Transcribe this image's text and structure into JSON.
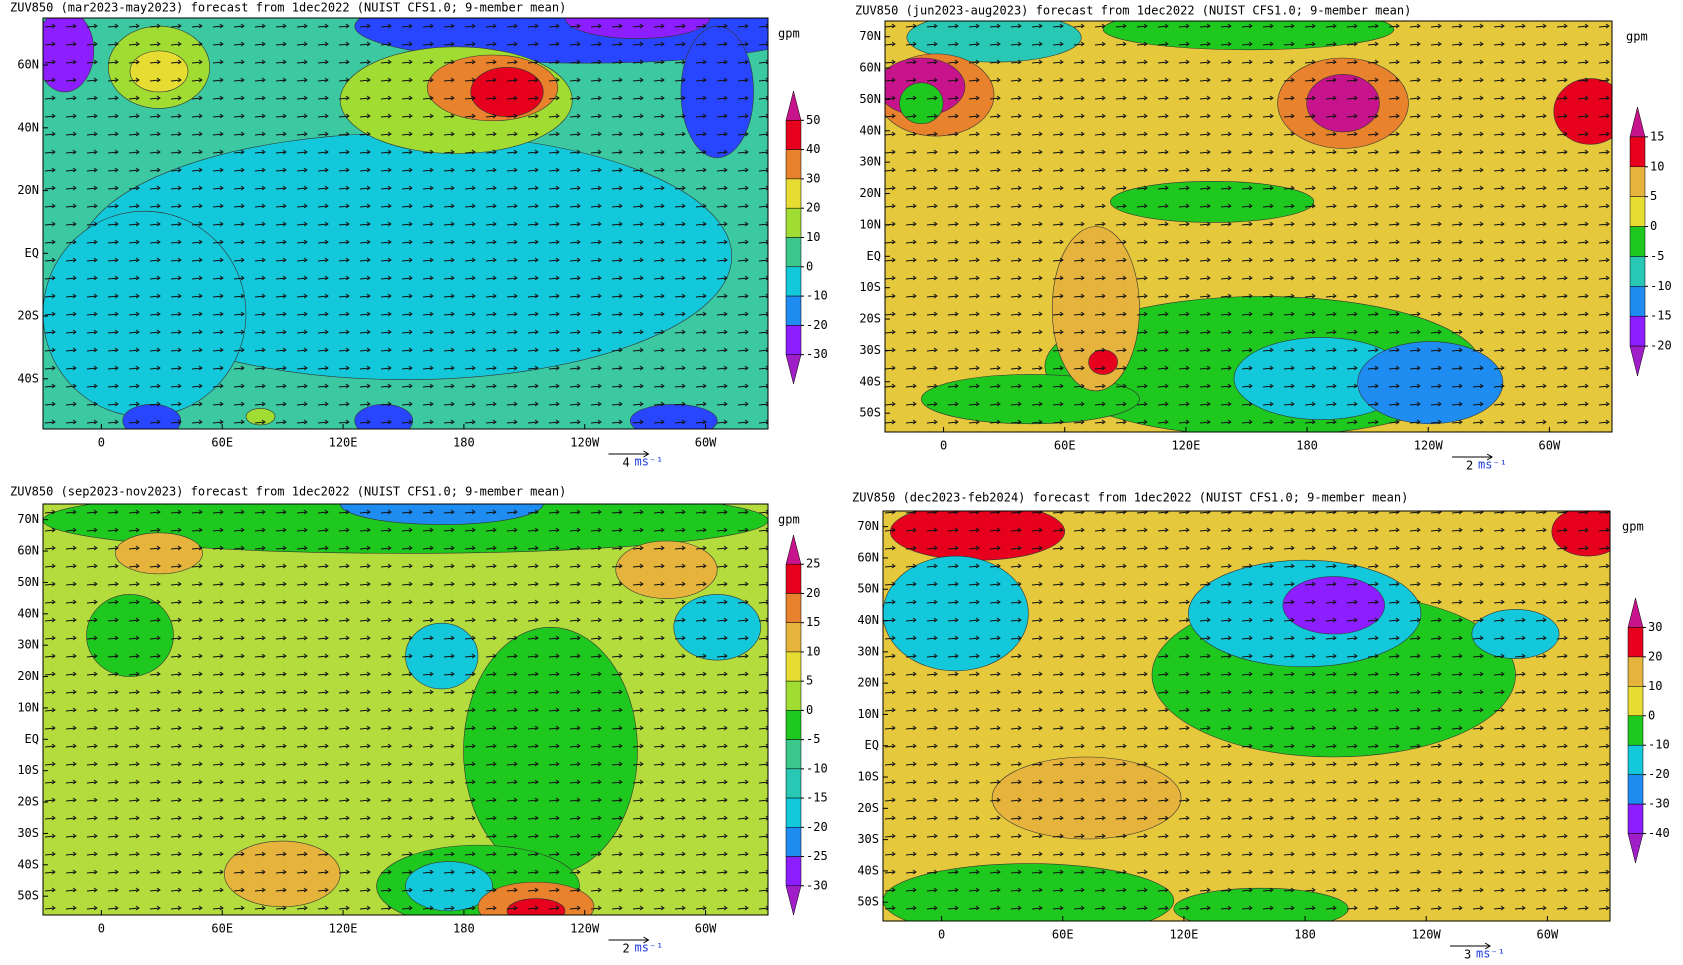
{
  "panels": [
    {
      "title": "ZUV850 (mar2023-may2023) forecast from 1dec2022 (NUIST CFS1.0; 9-member mean)",
      "lat_labels": [
        "60N",
        "40N",
        "20N",
        "EQ",
        "20S",
        "40S"
      ],
      "lon_labels": [
        "0",
        "60E",
        "120E",
        "180",
        "120W",
        "60W"
      ],
      "unit": "gpm",
      "levels": [
        "50",
        "40",
        "30",
        "20",
        "10",
        "0",
        "-10",
        "-20",
        "-30"
      ],
      "scale": "4",
      "scale_unit": "ms⁻¹"
    },
    {
      "title": "ZUV850 (jun2023-aug2023) forecast from 1dec2022 (NUIST CFS1.0; 9-member mean)",
      "lat_labels": [
        "70N",
        "60N",
        "50N",
        "40N",
        "30N",
        "20N",
        "10N",
        "EQ",
        "10S",
        "20S",
        "30S",
        "40S",
        "50S"
      ],
      "lon_labels": [
        "0",
        "60E",
        "120E",
        "180",
        "120W",
        "60W"
      ],
      "unit": "gpm",
      "levels": [
        "15",
        "10",
        "5",
        "0",
        "-5",
        "-10",
        "-15",
        "-20"
      ],
      "scale": "2",
      "scale_unit": "ms⁻¹"
    },
    {
      "title": "ZUV850 (sep2023-nov2023) forecast from 1dec2022 (NUIST CFS1.0; 9-member mean)",
      "lat_labels": [
        "70N",
        "60N",
        "50N",
        "40N",
        "30N",
        "20N",
        "10N",
        "EQ",
        "10S",
        "20S",
        "30S",
        "40S",
        "50S"
      ],
      "lon_labels": [
        "0",
        "60E",
        "120E",
        "180",
        "120W",
        "60W"
      ],
      "unit": "gpm",
      "levels": [
        "25",
        "20",
        "15",
        "10",
        "5",
        "0",
        "-5",
        "-10",
        "-15",
        "-20",
        "-25",
        "-30"
      ],
      "scale": "2",
      "scale_unit": "ms⁻¹"
    },
    {
      "title": "ZUV850 (dec2023-feb2024) forecast from 1dec2022 (NUIST CFS1.0; 9-member mean)",
      "lat_labels": [
        "70N",
        "60N",
        "50N",
        "40N",
        "30N",
        "20N",
        "10N",
        "EQ",
        "10S",
        "20S",
        "30S",
        "40S",
        "50S"
      ],
      "lon_labels": [
        "0",
        "60E",
        "120E",
        "180",
        "120W",
        "60W"
      ],
      "unit": "gpm",
      "levels": [
        "30",
        "20",
        "10",
        "0",
        "-10",
        "-20",
        "-30",
        "-40"
      ],
      "scale": "3",
      "scale_unit": "ms⁻¹"
    }
  ]
}
